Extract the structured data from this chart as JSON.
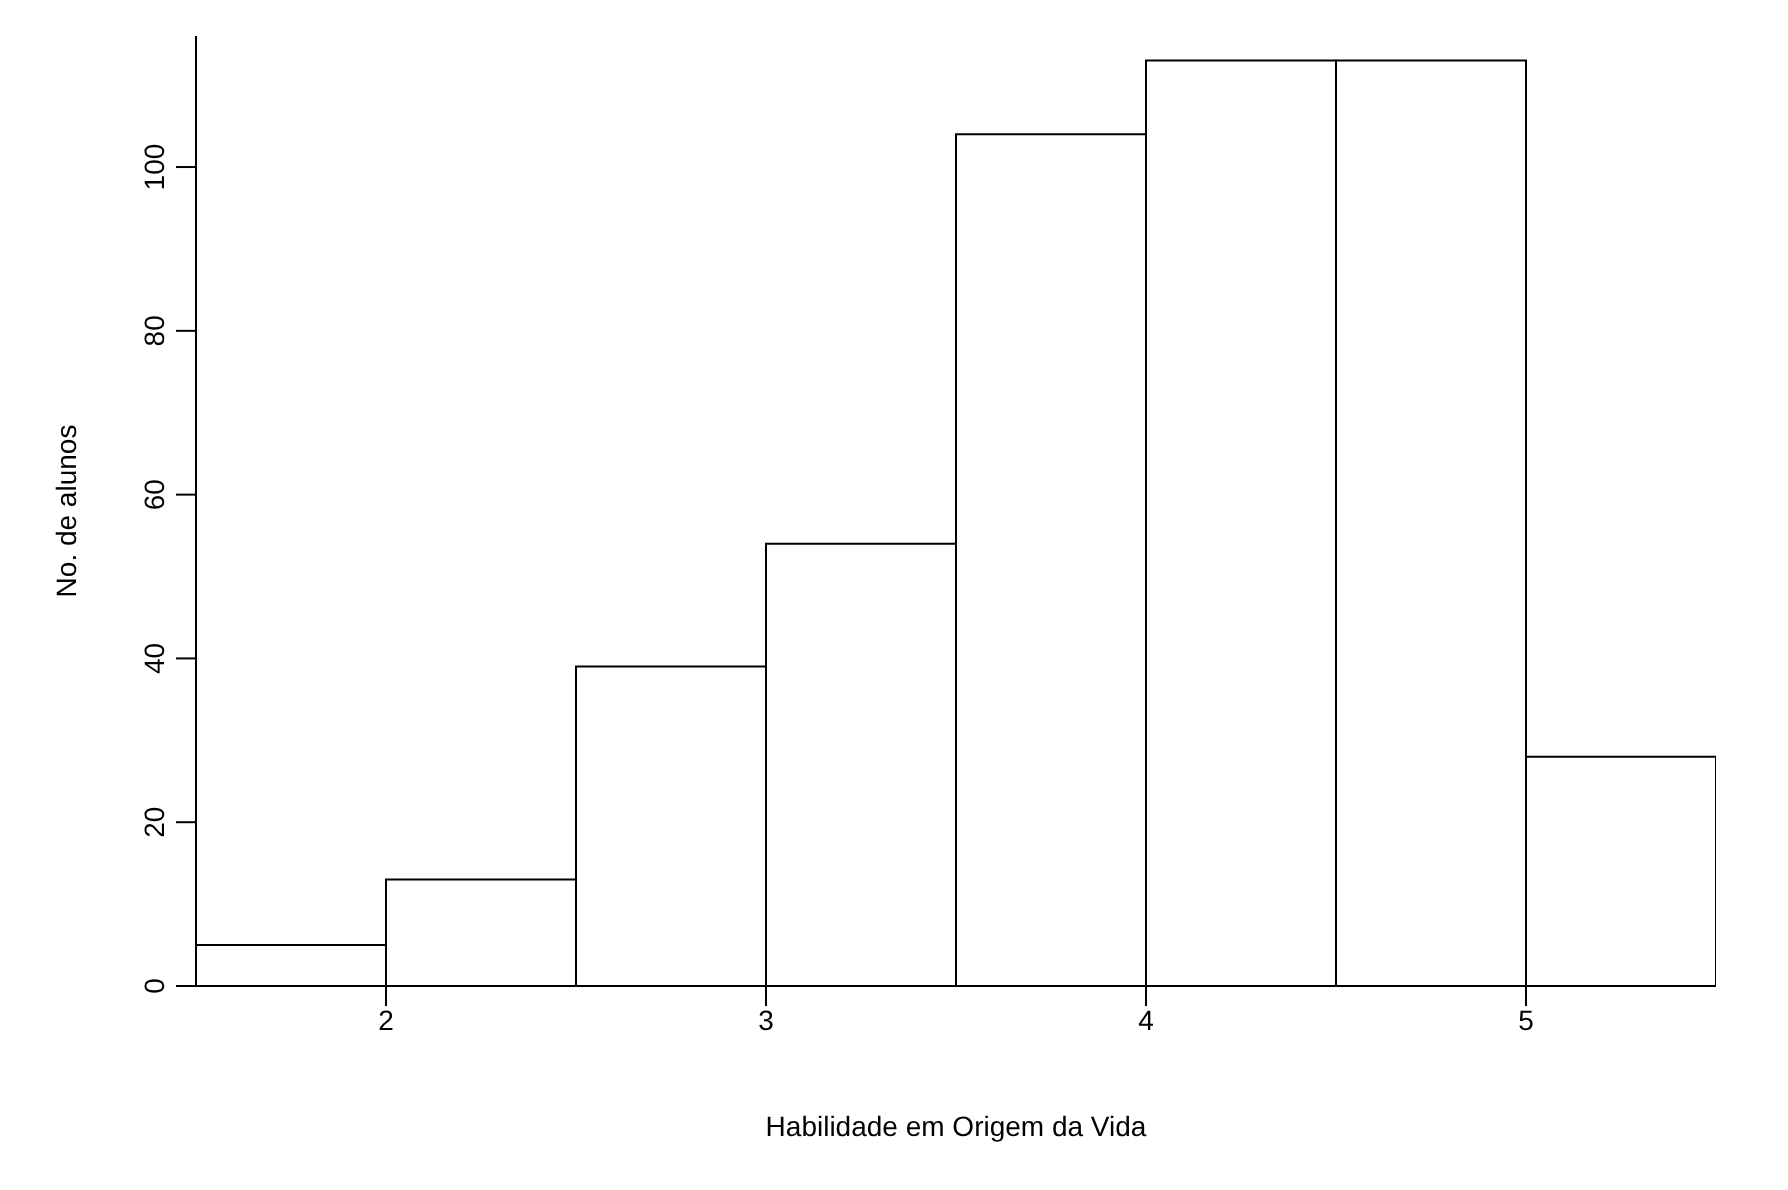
{
  "chart_data": {
    "type": "histogram",
    "xlabel": "Habilidade em Origem da Vida",
    "ylabel": "No. de alunos",
    "bins": [
      1.5,
      2,
      2.5,
      3,
      3.5,
      4,
      4.5,
      5,
      5.5
    ],
    "values": [
      5,
      13,
      39,
      54,
      104,
      113,
      113,
      28
    ],
    "color": "#ffffff",
    "xlim": [
      1.5,
      5.5
    ],
    "xticks": [
      2,
      3,
      4,
      5
    ],
    "ylim": [
      0,
      116
    ],
    "yticks": [
      0,
      20,
      40,
      60,
      80,
      100
    ],
    "grid": false,
    "legend": false
  }
}
